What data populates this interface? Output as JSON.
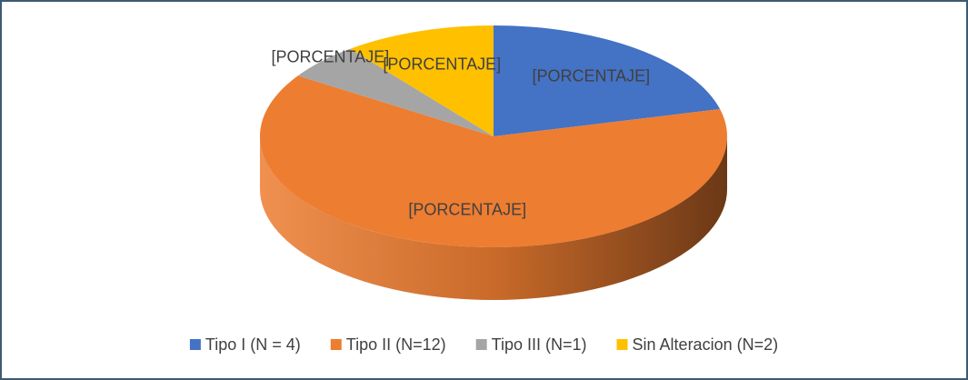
{
  "chart_data": {
    "type": "pie3d",
    "categories": [
      "Tipo I (N = 4)",
      "Tipo II (N=12)",
      "Tipo III (N=1)",
      "Sin Alteracion (N=2)"
    ],
    "values": [
      4,
      12,
      1,
      2
    ],
    "value_labels": [
      "[PORCENTAJE]",
      "[PORCENTAJE]",
      "[PORCENTAJE]",
      "[PORCENTAJE]"
    ],
    "colors": [
      "#4472c4",
      "#ed7d31",
      "#a5a5a5",
      "#ffc000"
    ],
    "legend": "bottom"
  }
}
